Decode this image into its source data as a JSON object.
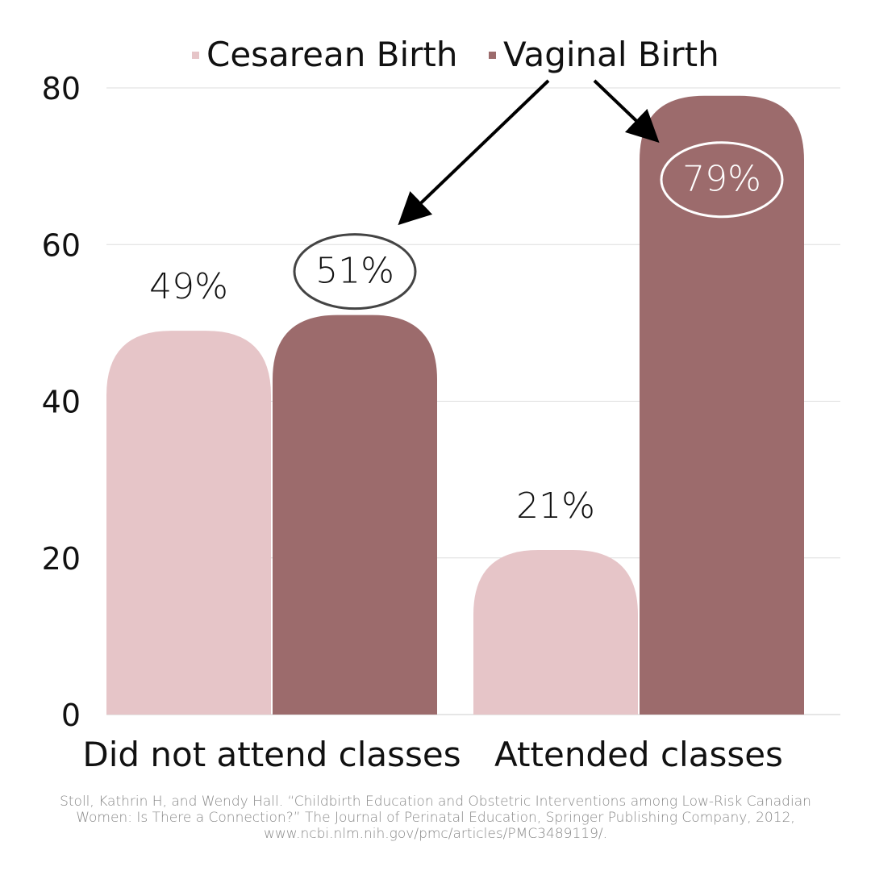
{
  "chart_data": {
    "type": "bar",
    "categories": [
      "Did not attend classes",
      "Attended classes"
    ],
    "series": [
      {
        "name": "Cesarean Birth",
        "values": [
          49,
          21
        ],
        "color": "#e6c5c8"
      },
      {
        "name": "Vaginal Birth",
        "values": [
          51,
          79
        ],
        "color": "#9c6b6c"
      }
    ],
    "data_labels": [
      [
        "49%",
        "21%"
      ],
      [
        "51%",
        "79%"
      ]
    ],
    "highlighted_series": "Vaginal Birth",
    "ylim": [
      0,
      80
    ],
    "yticks": [
      0,
      20,
      40,
      60,
      80
    ],
    "grid": true,
    "legend_position": "top",
    "source": "Stoll, Kathrin H, and Wendy Hall. “Childbirth Education and Obstetric Interventions among Low-Risk Canadian Women: Is There a Connection?” The Journal of Perinatal Education, Springer Publishing Company, 2012, www.ncbi.nlm.nih.gov/pmc/articles/PMC3489119/."
  }
}
